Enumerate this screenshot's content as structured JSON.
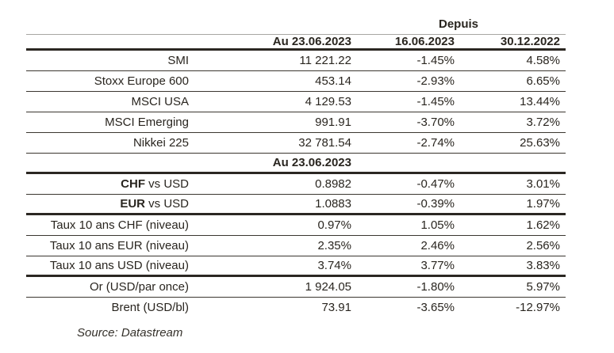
{
  "header": {
    "depuis_label": "Depuis",
    "col_value": "Au 23.06.2023",
    "col_change_1": "16.06.2023",
    "col_change_2": "30.12.2022"
  },
  "section2_header": "Au 23.06.2023",
  "rows": [
    {
      "label_bold": "",
      "label_rest": "SMI",
      "value": "11 221.22",
      "chg1": "-1.45%",
      "chg2": "4.58%"
    },
    {
      "label_bold": "",
      "label_rest": "Stoxx Europe 600",
      "value": "453.14",
      "chg1": "-2.93%",
      "chg2": "6.65%"
    },
    {
      "label_bold": "",
      "label_rest": "MSCI USA",
      "value": "4 129.53",
      "chg1": "-1.45%",
      "chg2": "13.44%"
    },
    {
      "label_bold": "",
      "label_rest": "MSCI Emerging",
      "value": "991.91",
      "chg1": "-3.70%",
      "chg2": "3.72%"
    },
    {
      "label_bold": "",
      "label_rest": "Nikkei 225",
      "value": "32 781.54",
      "chg1": "-2.74%",
      "chg2": "25.63%"
    },
    {
      "label_bold": "CHF",
      "label_rest": " vs USD",
      "value": "0.8982",
      "chg1": "-0.47%",
      "chg2": "3.01%"
    },
    {
      "label_bold": "EUR",
      "label_rest": " vs USD",
      "value": "1.0883",
      "chg1": "-0.39%",
      "chg2": "1.97%"
    },
    {
      "label_bold": "",
      "label_rest": "Taux 10 ans CHF (niveau)",
      "value": "0.97%",
      "chg1": "1.05%",
      "chg2": "1.62%"
    },
    {
      "label_bold": "",
      "label_rest": "Taux 10 ans EUR (niveau)",
      "value": "2.35%",
      "chg1": "2.46%",
      "chg2": "2.56%"
    },
    {
      "label_bold": "",
      "label_rest": "Taux 10 ans USD (niveau)",
      "value": "3.74%",
      "chg1": "3.77%",
      "chg2": "3.83%"
    },
    {
      "label_bold": "",
      "label_rest": "Or (USD/par once)",
      "value": "1 924.05",
      "chg1": "-1.80%",
      "chg2": "5.97%"
    },
    {
      "label_bold": "",
      "label_rest": "Brent (USD/bl)",
      "value": "73.91",
      "chg1": "-3.65%",
      "chg2": "-12.97%"
    }
  ],
  "source": "Source: Datastream",
  "colors": {
    "text": "#29251f",
    "thick_rule": "#2b2722",
    "thin_rule": "#3a362f",
    "faint_rule": "#a8a6a3",
    "background": "#ffffff"
  }
}
